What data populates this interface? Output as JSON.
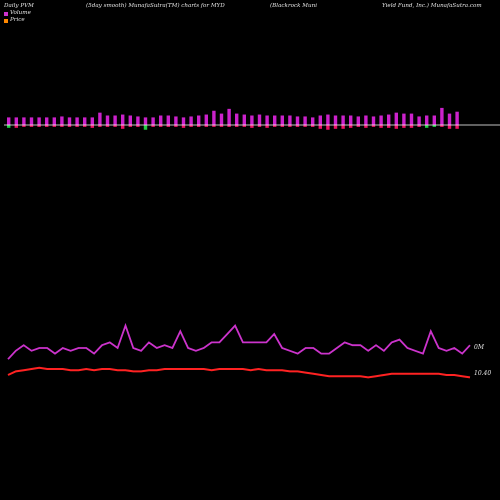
{
  "header": {
    "col1": "Daily PVM",
    "col2": "(5day smooth) MunafaSutra(TM) charts for MYD",
    "col3": "(Blackrock Muni",
    "col4": "Yield Fund, Inc.) MunafaSutra.com"
  },
  "legend": [
    {
      "label": "Volume",
      "color": "#cc33cc"
    },
    {
      "label": "Price",
      "color": "#ff8800"
    }
  ],
  "colors": {
    "background": "#000000",
    "up_bar": "#cc22cc",
    "down_bar": "#ee1166",
    "low_bar": "#22cc44",
    "volume_line": "#cc33cc",
    "price_line": "#ff2222",
    "zero_line": "#ffffff"
  },
  "chart_data": [
    {
      "type": "bar",
      "description_label": "PVM",
      "values": [
        0.8,
        0.8,
        0.8,
        0.8,
        0.8,
        0.8,
        0.8,
        0.9,
        0.8,
        0.8,
        0.8,
        0.8,
        1.3,
        1.0,
        1.0,
        1.1,
        1.0,
        0.9,
        0.8,
        0.8,
        1.0,
        1.0,
        0.9,
        0.8,
        0.9,
        1.0,
        1.1,
        1.5,
        1.2,
        1.7,
        1.2,
        1.1,
        1.0,
        1.1,
        1.0,
        1.0,
        1.0,
        1.0,
        0.9,
        0.9,
        0.8,
        1.0,
        1.1,
        1.0,
        1.0,
        1.0,
        0.9,
        1.0,
        0.9,
        1.0,
        1.1,
        1.3,
        1.2,
        1.2,
        0.9,
        1.0,
        1.0,
        1.8,
        1.2,
        1.4
      ],
      "below": [
        0.3,
        0.3,
        0.2,
        0.2,
        0.2,
        0.2,
        0.2,
        0.2,
        0.2,
        0.2,
        0.2,
        0.3,
        0.2,
        0.2,
        0.2,
        0.4,
        0.2,
        0.2,
        0.5,
        0.2,
        0.2,
        0.2,
        0.2,
        0.3,
        0.2,
        0.2,
        0.2,
        0.2,
        0.2,
        0.2,
        0.2,
        0.2,
        0.3,
        0.2,
        0.3,
        0.2,
        0.2,
        0.2,
        0.2,
        0.2,
        0.2,
        0.4,
        0.5,
        0.4,
        0.4,
        0.3,
        0.2,
        0.3,
        0.2,
        0.3,
        0.3,
        0.4,
        0.3,
        0.3,
        0.2,
        0.3,
        0.2,
        0.2,
        0.4,
        0.4
      ],
      "lowmark": [
        1,
        0,
        0,
        0,
        0,
        0,
        0,
        0,
        0,
        0,
        0,
        0,
        0,
        0,
        0,
        0,
        0,
        0,
        1,
        0,
        0,
        0,
        0,
        0,
        0,
        0,
        0,
        0,
        0,
        0,
        0,
        0,
        0,
        0,
        0,
        0,
        0,
        0,
        0,
        0,
        0,
        0,
        0,
        0,
        0,
        0,
        0,
        0,
        0,
        0,
        0,
        0,
        0,
        0,
        0,
        1,
        1,
        0,
        0,
        0
      ]
    },
    {
      "type": "line",
      "series": [
        {
          "name": "Volume",
          "values": [
            6,
            9,
            11,
            9,
            10,
            10,
            8,
            10,
            9,
            10,
            10,
            8,
            11,
            12,
            10,
            18,
            10,
            9,
            12,
            10,
            11,
            10,
            16,
            10,
            9,
            10,
            12,
            12,
            15,
            18,
            12,
            12,
            12,
            12,
            15,
            10,
            9,
            8,
            10,
            10,
            8,
            8,
            10,
            12,
            11,
            11,
            9,
            11,
            9,
            12,
            13,
            10,
            9,
            8,
            16,
            10,
            9,
            10,
            8,
            11
          ],
          "axis_label": "0M"
        },
        {
          "name": "Price",
          "values": [
            10.44,
            10.47,
            10.48,
            10.49,
            10.5,
            10.49,
            10.49,
            10.49,
            10.48,
            10.48,
            10.49,
            10.48,
            10.49,
            10.49,
            10.48,
            10.48,
            10.47,
            10.47,
            10.48,
            10.48,
            10.49,
            10.49,
            10.49,
            10.49,
            10.49,
            10.49,
            10.48,
            10.49,
            10.49,
            10.49,
            10.49,
            10.48,
            10.49,
            10.48,
            10.48,
            10.48,
            10.47,
            10.47,
            10.46,
            10.45,
            10.44,
            10.43,
            10.43,
            10.43,
            10.43,
            10.43,
            10.42,
            10.43,
            10.44,
            10.45,
            10.45,
            10.45,
            10.45,
            10.45,
            10.45,
            10.45,
            10.44,
            10.44,
            10.43,
            10.42
          ],
          "axis_label": "10.40"
        }
      ]
    }
  ]
}
